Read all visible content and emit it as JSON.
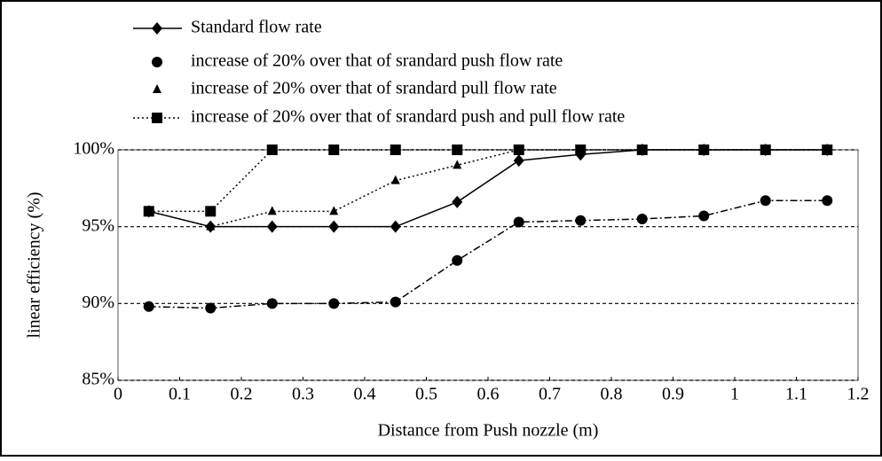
{
  "chart_data": {
    "type": "line",
    "xlabel": "Distance from Push nozzle (m)",
    "ylabel": "linear efficiency (%)",
    "x": [
      0.05,
      0.15,
      0.25,
      0.35,
      0.45,
      0.55,
      0.65,
      0.75,
      0.85,
      0.95,
      1.05,
      1.15
    ],
    "series": [
      {
        "name": "Standard flow rate",
        "color": "#000000",
        "marker": "diamond",
        "dash": "solid",
        "values": [
          96,
          95,
          95,
          95,
          95,
          96.6,
          99.3,
          99.7,
          100,
          100,
          100,
          100
        ]
      },
      {
        "name": "increase of 20% over that of srandard push flow rate",
        "color": "#000000",
        "marker": "circle",
        "dash": "dashdot",
        "values": [
          89.8,
          89.7,
          90.0,
          90.0,
          90.1,
          92.8,
          95.3,
          95.4,
          95.5,
          95.7,
          96.7,
          96.7
        ]
      },
      {
        "name": "increase of 20% over that of srandard pull flow rate",
        "color": "#000000",
        "marker": "triangle",
        "dash": "dotted",
        "values": [
          96,
          95,
          96,
          96,
          98,
          99,
          100,
          100,
          100,
          100,
          100,
          100
        ]
      },
      {
        "name": "increase of 20% over that of srandard push and pull flow rate",
        "color": "#000000",
        "marker": "square",
        "dash": "dotted",
        "values": [
          96,
          96,
          100,
          100,
          100,
          100,
          100,
          100,
          100,
          100,
          100,
          100
        ]
      }
    ],
    "xlim": [
      0,
      1.2
    ],
    "xticks": [
      0,
      0.1,
      0.2,
      0.3,
      0.4,
      0.5,
      0.6,
      0.7,
      0.8,
      0.9,
      1,
      1.1,
      1.2
    ],
    "ylim": [
      85,
      100
    ],
    "yticks": [
      {
        "value": 85,
        "label": "85%"
      },
      {
        "value": 90,
        "label": "90%"
      },
      {
        "value": 95,
        "label": "95%"
      },
      {
        "value": 100,
        "label": "100%"
      }
    ],
    "grid": true,
    "legend": "top-left"
  }
}
